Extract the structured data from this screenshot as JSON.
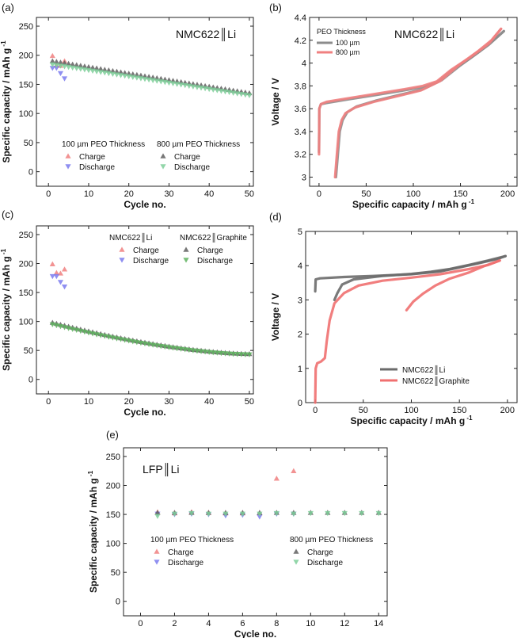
{
  "chart_data": [
    {
      "panel": "(a)",
      "type": "scatter",
      "annotation": "NMC622║Li",
      "xlabel": "Cycle no.",
      "ylabel": "Specific capacity / mAh g",
      "ylabel_sup": "-1",
      "xlim": [
        -3,
        51
      ],
      "ylim": [
        -25,
        265
      ],
      "xticks": [
        0,
        10,
        20,
        30,
        40,
        50
      ],
      "yticks": [
        0,
        50,
        100,
        150,
        200,
        250
      ],
      "legend": {
        "group1_title": "100 µm PEO Thickness",
        "group2_title": "800 µm PEO Thickness",
        "charge": "Charge",
        "discharge": "Discharge"
      },
      "series": [
        {
          "name": "100 µm Charge",
          "marker": "up",
          "color": "#f08080",
          "x": [
            1,
            2,
            3,
            4
          ],
          "y": [
            199,
            183,
            182,
            190
          ]
        },
        {
          "name": "100 µm Discharge",
          "marker": "down",
          "color": "#7b7bef",
          "x": [
            1,
            2,
            3,
            4
          ],
          "y": [
            178,
            178,
            169,
            160
          ]
        },
        {
          "name": "800 µm Charge",
          "marker": "up",
          "color": "#606060",
          "x_start": 1,
          "x_end": 50,
          "y_start": 190,
          "y_end": 135
        },
        {
          "name": "800 µm Discharge",
          "marker": "down",
          "color": "#7fcf9a",
          "x_start": 1,
          "x_end": 50,
          "y_start": 184,
          "y_end": 131
        }
      ]
    },
    {
      "panel": "(b)",
      "type": "line",
      "annotation": "NMC622║Li",
      "xlabel": "Specific capacity / mAh g",
      "xlabel_sup": "-1",
      "ylabel": "Voltage / V",
      "xlim": [
        -10,
        210
      ],
      "ylim": [
        2.92,
        4.4
      ],
      "xticks": [
        0,
        50,
        100,
        150,
        200
      ],
      "yticks": [
        3.0,
        3.2,
        3.4,
        3.6,
        3.8,
        4.0,
        4.2,
        4.4
      ],
      "legend_title": "PEO Thickness",
      "series": [
        {
          "name": "100 µm",
          "color": "#8c8c8c",
          "charge": [
            [
              0,
              3.22
            ],
            [
              0.3,
              3.6
            ],
            [
              2,
              3.64
            ],
            [
              8,
              3.65
            ],
            [
              30,
              3.68
            ],
            [
              60,
              3.72
            ],
            [
              90,
              3.76
            ],
            [
              110,
              3.79
            ],
            [
              125,
              3.83
            ],
            [
              140,
              3.93
            ],
            [
              160,
              4.04
            ],
            [
              180,
              4.16
            ],
            [
              196,
              4.28
            ]
          ],
          "discharge": [
            [
              196,
              4.28
            ],
            [
              185,
              4.2
            ],
            [
              170,
              4.1
            ],
            [
              150,
              3.98
            ],
            [
              130,
              3.85
            ],
            [
              110,
              3.77
            ],
            [
              90,
              3.73
            ],
            [
              60,
              3.67
            ],
            [
              40,
              3.62
            ],
            [
              30,
              3.57
            ],
            [
              25,
              3.5
            ],
            [
              22,
              3.4
            ],
            [
              20,
              3.2
            ],
            [
              18,
              3.0
            ]
          ]
        },
        {
          "name": "800 µm",
          "color": "#f08080",
          "charge": [
            [
              0,
              3.2
            ],
            [
              0.3,
              3.6
            ],
            [
              2,
              3.64
            ],
            [
              8,
              3.66
            ],
            [
              30,
              3.69
            ],
            [
              60,
              3.73
            ],
            [
              90,
              3.77
            ],
            [
              110,
              3.8
            ],
            [
              125,
              3.84
            ],
            [
              140,
              3.94
            ],
            [
              160,
              4.05
            ],
            [
              180,
              4.17
            ],
            [
              193,
              4.3
            ]
          ],
          "discharge": [
            [
              193,
              4.3
            ],
            [
              183,
              4.2
            ],
            [
              168,
              4.1
            ],
            [
              148,
              3.98
            ],
            [
              128,
              3.84
            ],
            [
              108,
              3.76
            ],
            [
              88,
              3.72
            ],
            [
              58,
              3.66
            ],
            [
              38,
              3.61
            ],
            [
              28,
              3.56
            ],
            [
              24,
              3.5
            ],
            [
              21,
              3.4
            ],
            [
              19,
              3.2
            ],
            [
              17,
              3.0
            ]
          ]
        }
      ]
    },
    {
      "panel": "(c)",
      "type": "scatter",
      "xlabel": "Cycle no.",
      "ylabel": "Specific capacity / mAh g",
      "ylabel_sup": "-1",
      "xlim": [
        -3,
        51
      ],
      "ylim": [
        -25,
        265
      ],
      "xticks": [
        0,
        10,
        20,
        30,
        40,
        50
      ],
      "yticks": [
        0,
        50,
        100,
        150,
        200,
        250
      ],
      "legend": {
        "group1_title": "NMC622║Li",
        "group2_title": "NMC622║Graphite",
        "charge": "Charge",
        "discharge": "Discharge"
      },
      "series": [
        {
          "name": "NMC622║Li Charge",
          "marker": "up",
          "color": "#f08080",
          "x": [
            1,
            2,
            3,
            4
          ],
          "y": [
            199,
            184,
            183,
            190
          ]
        },
        {
          "name": "NMC622║Li Discharge",
          "marker": "down",
          "color": "#7b7bef",
          "x": [
            1,
            2,
            3,
            4
          ],
          "y": [
            178,
            178,
            168,
            160
          ]
        },
        {
          "name": "NMC622║Graphite Charge",
          "marker": "up",
          "color": "#606060",
          "x_start": 1,
          "x_end": 50,
          "y_start": 98,
          "y_end": 44
        },
        {
          "name": "NMC622║Graphite Discharge",
          "marker": "down",
          "color": "#5fb35f",
          "x_start": 1,
          "x_end": 50,
          "y_start": 95,
          "y_end": 43
        }
      ]
    },
    {
      "panel": "(d)",
      "type": "line",
      "xlabel": "Specific capacity / mAh g",
      "xlabel_sup": "-1",
      "ylabel": "Voltage / V",
      "xlim": [
        -10,
        210
      ],
      "ylim": [
        0,
        5
      ],
      "xticks": [
        0,
        50,
        100,
        150,
        200
      ],
      "yticks": [
        0,
        1,
        2,
        3,
        4,
        5
      ],
      "series": [
        {
          "name": "NMC622║Li",
          "color": "#6b6b6b",
          "charge": [
            [
              0,
              3.25
            ],
            [
              0.5,
              3.6
            ],
            [
              5,
              3.63
            ],
            [
              30,
              3.67
            ],
            [
              60,
              3.7
            ],
            [
              100,
              3.75
            ],
            [
              130,
              3.83
            ],
            [
              150,
              3.95
            ],
            [
              170,
              4.07
            ],
            [
              190,
              4.2
            ],
            [
              198,
              4.28
            ]
          ],
          "discharge": [
            [
              198,
              4.28
            ],
            [
              180,
              4.15
            ],
            [
              160,
              4.02
            ],
            [
              140,
              3.9
            ],
            [
              120,
              3.82
            ],
            [
              100,
              3.76
            ],
            [
              70,
              3.7
            ],
            [
              40,
              3.6
            ],
            [
              28,
              3.45
            ],
            [
              23,
              3.2
            ],
            [
              20,
              3.0
            ]
          ]
        },
        {
          "name": "NMC622║Graphite",
          "color": "#f07070",
          "charge": [
            [
              0,
              0
            ],
            [
              0.5,
              1.0
            ],
            [
              2,
              1.15
            ],
            [
              6,
              1.2
            ],
            [
              10,
              1.3
            ],
            [
              12,
              1.8
            ],
            [
              15,
              2.4
            ],
            [
              20,
              2.9
            ],
            [
              30,
              3.2
            ],
            [
              45,
              3.42
            ],
            [
              70,
              3.56
            ],
            [
              100,
              3.65
            ],
            [
              130,
              3.75
            ],
            [
              160,
              3.9
            ],
            [
              180,
              4.02
            ],
            [
              192,
              4.15
            ]
          ],
          "discharge": [
            [
              192,
              4.15
            ],
            [
              175,
              3.98
            ],
            [
              160,
              3.8
            ],
            [
              140,
              3.62
            ],
            [
              125,
              3.42
            ],
            [
              112,
              3.18
            ],
            [
              102,
              2.95
            ],
            [
              95,
              2.7
            ]
          ]
        }
      ]
    },
    {
      "panel": "(e)",
      "type": "scatter",
      "annotation": "LFP║Li",
      "xlabel": "Cycle no.",
      "ylabel": "Specific capacity / mAh g",
      "ylabel_sup": "-1",
      "xlim": [
        -1,
        14.5
      ],
      "ylim": [
        -25,
        265
      ],
      "xticks": [
        0,
        2,
        4,
        6,
        8,
        10,
        12,
        14
      ],
      "yticks": [
        0,
        50,
        100,
        150,
        200,
        250
      ],
      "legend": {
        "group1_title": "100 µm PEO Thickness",
        "group2_title": "800 µm PEO Thickness",
        "charge": "Charge",
        "discharge": "Discharge"
      },
      "series": [
        {
          "name": "100 µm Charge",
          "marker": "up",
          "color": "#f08080",
          "x": [
            1,
            2,
            3,
            4,
            5,
            6,
            7,
            8,
            9
          ],
          "y": [
            154,
            152,
            154,
            153,
            152,
            152,
            152,
            212,
            225
          ]
        },
        {
          "name": "100 µm Discharge",
          "marker": "down",
          "color": "#7b7bef",
          "x": [
            1,
            2,
            3,
            4,
            5,
            6,
            7,
            8,
            9
          ],
          "y": [
            151,
            150,
            151,
            150,
            148,
            149,
            146,
            151,
            151
          ]
        },
        {
          "name": "800 µm Charge",
          "marker": "up",
          "color": "#606060",
          "x": [
            1,
            2,
            3,
            4,
            5,
            6,
            7,
            8,
            9,
            10,
            11,
            12,
            13,
            14
          ],
          "y": [
            153,
            153,
            153,
            153,
            153,
            153,
            153,
            153,
            153,
            153,
            153,
            153,
            153,
            153
          ]
        },
        {
          "name": "800 µm Discharge",
          "marker": "down",
          "color": "#7fcf9a",
          "x": [
            1,
            2,
            3,
            4,
            5,
            6,
            7,
            8,
            9,
            10,
            11,
            12,
            13,
            14
          ],
          "y": [
            147,
            151,
            152,
            151,
            151,
            151,
            151,
            152,
            151,
            152,
            152,
            152,
            152,
            152
          ]
        }
      ]
    }
  ]
}
